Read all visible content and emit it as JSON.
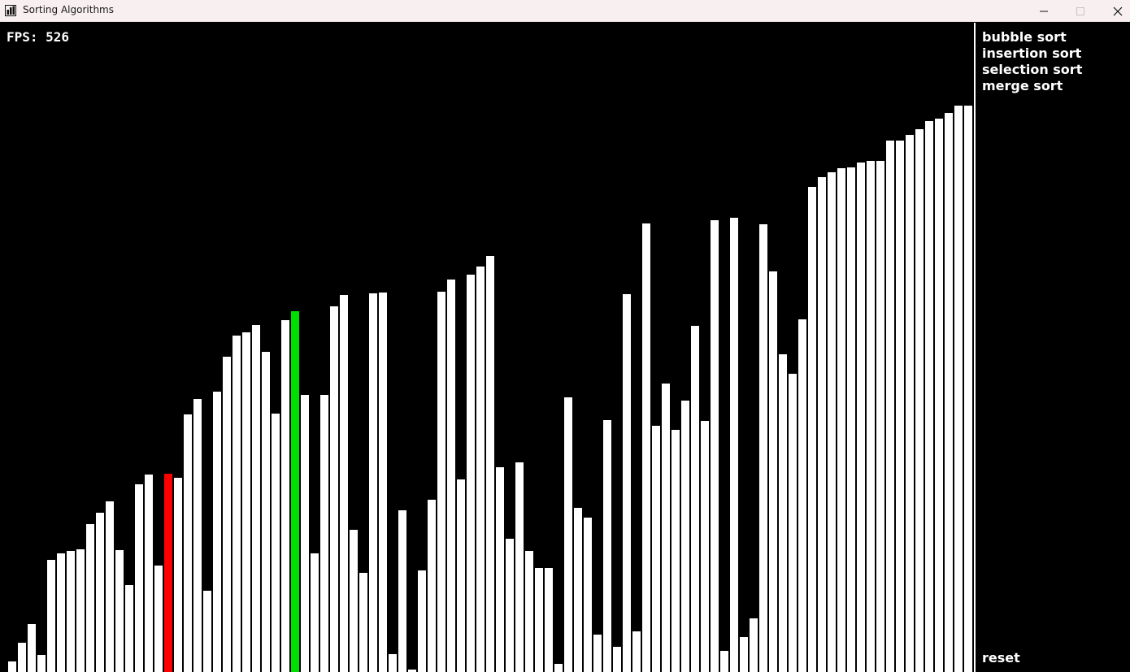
{
  "window": {
    "title": "Sorting Algorithms"
  },
  "fps": {
    "label": "FPS: 526"
  },
  "menu": {
    "items": [
      "bubble sort",
      "insertion sort",
      "selection sort",
      "merge sort"
    ],
    "reset_label": "reset"
  },
  "colors": {
    "bar": "#ffffff",
    "compare": "#ff0000",
    "current": "#00dd00",
    "background": "#000000"
  },
  "chart_data": {
    "type": "bar",
    "values": [
      13,
      36,
      59,
      21,
      138,
      146,
      149,
      151,
      182,
      196,
      210,
      150,
      107,
      231,
      243,
      131,
      244,
      239,
      317,
      336,
      100,
      345,
      388,
      414,
      418,
      427,
      394,
      318,
      433,
      444,
      341,
      146,
      341,
      450,
      464,
      175,
      122,
      466,
      467,
      22,
      199,
      3,
      125,
      212,
      468,
      483,
      237,
      489,
      499,
      512,
      252,
      164,
      258,
      149,
      128,
      128,
      10,
      338,
      202,
      190,
      46,
      310,
      31,
      465,
      50,
      552,
      303,
      355,
      298,
      334,
      426,
      309,
      556,
      26,
      559,
      43,
      66,
      551,
      493,
      391,
      367,
      434,
      597,
      609,
      615,
      620,
      621,
      627,
      629,
      629,
      654,
      654,
      661,
      668,
      678,
      681,
      688,
      697,
      697
    ],
    "highlight": {
      "red_index": 16,
      "green_index": 29
    }
  }
}
